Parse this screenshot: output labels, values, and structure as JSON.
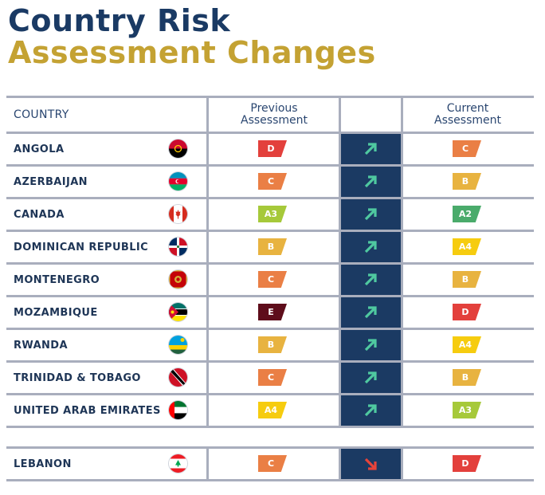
{
  "title": {
    "line1": "Country Risk",
    "line2": "Assessment Changes"
  },
  "headers": {
    "country": "COUNTRY",
    "previous": "Previous\nAssessment",
    "current": "Current\nAssessment"
  },
  "colors": {
    "navy": "#1b3a63",
    "gold": "#c4a233",
    "arrow_up": "#4fc9a0",
    "arrow_down": "#e8443a"
  },
  "rows": [
    {
      "country": "ANGOLA",
      "flag_icon": "angola-flag-icon",
      "previous": "D",
      "current": "C",
      "direction": "up"
    },
    {
      "country": "AZERBAIJAN",
      "flag_icon": "azerbaijan-flag-icon",
      "previous": "C",
      "current": "B",
      "direction": "up"
    },
    {
      "country": "CANADA",
      "flag_icon": "canada-flag-icon",
      "previous": "A3",
      "current": "A2",
      "direction": "up"
    },
    {
      "country": "DOMINICAN REPUBLIC",
      "flag_icon": "dominican-republic-flag-icon",
      "previous": "B",
      "current": "A4",
      "direction": "up"
    },
    {
      "country": "MONTENEGRO",
      "flag_icon": "montenegro-flag-icon",
      "previous": "C",
      "current": "B",
      "direction": "up"
    },
    {
      "country": "MOZAMBIQUE",
      "flag_icon": "mozambique-flag-icon",
      "previous": "E",
      "current": "D",
      "direction": "up"
    },
    {
      "country": "RWANDA",
      "flag_icon": "rwanda-flag-icon",
      "previous": "B",
      "current": "A4",
      "direction": "up"
    },
    {
      "country": "TRINIDAD & TOBAGO",
      "flag_icon": "trinidad-tobago-flag-icon",
      "previous": "C",
      "current": "B",
      "direction": "up"
    },
    {
      "country": "UNITED ARAB EMIRATES",
      "flag_icon": "uae-flag-icon",
      "previous": "A4",
      "current": "A3",
      "direction": "up"
    },
    {
      "country": "LEBANON",
      "flag_icon": "lebanon-flag-icon",
      "previous": "C",
      "current": "D",
      "direction": "down"
    }
  ],
  "rating_colors": {
    "A2": "#4aab6b",
    "A3": "#a6c93a",
    "A4": "#f6cc0f",
    "B": "#e8b340",
    "C": "#ea7f45",
    "D": "#e3403c",
    "E": "#5e0d1b"
  }
}
